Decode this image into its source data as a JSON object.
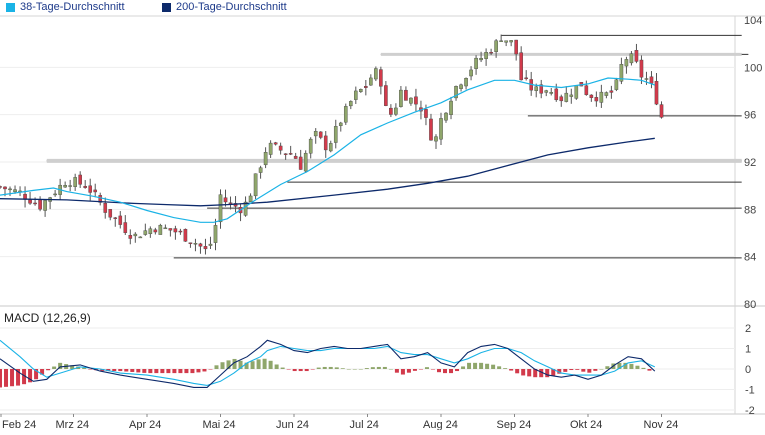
{
  "chart_data": [
    {
      "type": "candlestick",
      "series": [
        {
          "name": "38-Tage-Durchschnitt",
          "color": "#1ab3e6"
        },
        {
          "name": "200-Tage-Durchschnitt",
          "color": "#0d2a6b"
        }
      ],
      "ylim": [
        80,
        104
      ],
      "yticks": [
        "104",
        "100",
        "96",
        "92",
        "88",
        "84",
        "80"
      ],
      "xticks": [
        "Feb 24",
        "Mrz 24",
        "Apr 24",
        "Mai 24",
        "Jun 24",
        "Jul 24",
        "Aug 24",
        "Sep 24",
        "Okt 24",
        "Nov 24"
      ],
      "price_path": [
        [
          0,
          89.9
        ],
        [
          3,
          89.4
        ],
        [
          6,
          88.3
        ],
        [
          10,
          90.5
        ],
        [
          13,
          90.0
        ],
        [
          16,
          87.8
        ],
        [
          20,
          85.7
        ],
        [
          23,
          86.5
        ],
        [
          26,
          86.2
        ],
        [
          29,
          85.3
        ],
        [
          31,
          84.4
        ],
        [
          32,
          85.8
        ],
        [
          33,
          89.2
        ],
        [
          34,
          88.5
        ],
        [
          36,
          88.1
        ],
        [
          37,
          88.6
        ],
        [
          40,
          93.4
        ],
        [
          44,
          92.6
        ],
        [
          45,
          91.7
        ],
        [
          47,
          94.4
        ],
        [
          49,
          93.2
        ],
        [
          51,
          95.5
        ],
        [
          53,
          97.6
        ],
        [
          55,
          98.5
        ],
        [
          56,
          99.8
        ],
        [
          57,
          98.8
        ],
        [
          58,
          95.7
        ],
        [
          59,
          96.4
        ],
        [
          60,
          98.0
        ],
        [
          63,
          96.6
        ],
        [
          65,
          93.5
        ],
        [
          66,
          95.6
        ],
        [
          68,
          98.2
        ],
        [
          71,
          100.3
        ],
        [
          74,
          101.8
        ],
        [
          75,
          102.6
        ],
        [
          77,
          101.9
        ],
        [
          78,
          99.0
        ],
        [
          80,
          98.0
        ],
        [
          82,
          98.2
        ],
        [
          84,
          97.4
        ],
        [
          87,
          98.6
        ],
        [
          88,
          97.7
        ],
        [
          90,
          97.5
        ],
        [
          92,
          98.0
        ],
        [
          93,
          100.1
        ],
        [
          94,
          101.0
        ],
        [
          95,
          100.5
        ],
        [
          96,
          99.3
        ],
        [
          97,
          98.9
        ],
        [
          98,
          97.8
        ],
        [
          99,
          95.8
        ]
      ],
      "ma38_path": [
        [
          0,
          89.2
        ],
        [
          5,
          89.6
        ],
        [
          8,
          89.8
        ],
        [
          10,
          89.5
        ],
        [
          14,
          89.1
        ],
        [
          18,
          88.6
        ],
        [
          22,
          87.9
        ],
        [
          26,
          87.3
        ],
        [
          30,
          86.9
        ],
        [
          32,
          86.9
        ],
        [
          34,
          87.2
        ],
        [
          38,
          88.7
        ],
        [
          42,
          90.1
        ],
        [
          46,
          91.2
        ],
        [
          50,
          92.6
        ],
        [
          54,
          94.3
        ],
        [
          58,
          95.3
        ],
        [
          62,
          96.2
        ],
        [
          66,
          97.0
        ],
        [
          70,
          98.1
        ],
        [
          74,
          98.9
        ],
        [
          77,
          98.9
        ],
        [
          80,
          98.5
        ],
        [
          84,
          98.3
        ],
        [
          88,
          98.6
        ],
        [
          91,
          99.1
        ],
        [
          94,
          99.0
        ],
        [
          96,
          98.9
        ],
        [
          98,
          98.5
        ]
      ],
      "ma200_path": [
        [
          0,
          88.9
        ],
        [
          10,
          88.8
        ],
        [
          20,
          88.5
        ],
        [
          25,
          88.4
        ],
        [
          30,
          88.3
        ],
        [
          34,
          88.4
        ],
        [
          40,
          88.6
        ],
        [
          50,
          89.2
        ],
        [
          58,
          89.7
        ],
        [
          64,
          90.2
        ],
        [
          70,
          90.8
        ],
        [
          76,
          91.7
        ],
        [
          82,
          92.6
        ],
        [
          88,
          93.2
        ],
        [
          94,
          93.7
        ],
        [
          98,
          94.0
        ]
      ],
      "support_resistance": [
        {
          "level": 102.7,
          "from": 75,
          "to": 111
        },
        {
          "level": 101.1,
          "from": 57,
          "to": 111
        },
        {
          "level": 101.1,
          "from": 93,
          "to": 112
        },
        {
          "level": 95.9,
          "from": 79,
          "to": 111
        },
        {
          "level": 92.1,
          "from": 7,
          "to": 111
        },
        {
          "level": 90.3,
          "from": 43,
          "to": 111
        },
        {
          "level": 88.1,
          "from": 31,
          "to": 111
        },
        {
          "level": 83.9,
          "from": 26,
          "to": 111
        }
      ]
    },
    {
      "type": "bar",
      "title": "MACD (12,26,9)",
      "ylim": [
        -2,
        2
      ],
      "yticks": [
        "2",
        "1",
        "0",
        "-1",
        "-2"
      ],
      "histogram_color_positive": "#8fa66b",
      "histogram_color_negative": "#d23a4b",
      "macd_line_color": "#0d2a6b",
      "signal_line_color": "#1ab3e6",
      "macd_path": [
        [
          0,
          0.5
        ],
        [
          3,
          -0.2
        ],
        [
          5,
          -0.6
        ],
        [
          7,
          -0.5
        ],
        [
          9,
          0.1
        ],
        [
          12,
          0.2
        ],
        [
          15,
          -0.1
        ],
        [
          18,
          -0.3
        ],
        [
          22,
          -0.5
        ],
        [
          26,
          -0.7
        ],
        [
          29,
          -0.9
        ],
        [
          31,
          -0.9
        ],
        [
          33,
          -0.3
        ],
        [
          35,
          0.3
        ],
        [
          37,
          0.6
        ],
        [
          39,
          1.1
        ],
        [
          40,
          1.4
        ],
        [
          42,
          1.2
        ],
        [
          44,
          0.9
        ],
        [
          46,
          0.8
        ],
        [
          48,
          1.0
        ],
        [
          50,
          1.1
        ],
        [
          52,
          1.0
        ],
        [
          54,
          1.0
        ],
        [
          56,
          1.1
        ],
        [
          58,
          1.2
        ],
        [
          60,
          0.5
        ],
        [
          62,
          0.6
        ],
        [
          64,
          0.8
        ],
        [
          66,
          0.3
        ],
        [
          68,
          0.1
        ],
        [
          70,
          0.8
        ],
        [
          72,
          1.1
        ],
        [
          74,
          1.2
        ],
        [
          76,
          1.0
        ],
        [
          78,
          0.5
        ],
        [
          80,
          0.0
        ],
        [
          82,
          -0.3
        ],
        [
          84,
          -0.4
        ],
        [
          86,
          -0.3
        ],
        [
          88,
          -0.5
        ],
        [
          90,
          -0.3
        ],
        [
          92,
          0.2
        ],
        [
          94,
          0.6
        ],
        [
          96,
          0.5
        ],
        [
          98,
          -0.1
        ]
      ],
      "signal_path": [
        [
          0,
          1.4
        ],
        [
          3,
          0.6
        ],
        [
          5,
          0.0
        ],
        [
          7,
          -0.4
        ],
        [
          9,
          -0.2
        ],
        [
          12,
          0.1
        ],
        [
          15,
          0.0
        ],
        [
          18,
          -0.2
        ],
        [
          22,
          -0.3
        ],
        [
          26,
          -0.5
        ],
        [
          29,
          -0.7
        ],
        [
          31,
          -0.8
        ],
        [
          33,
          -0.6
        ],
        [
          35,
          -0.2
        ],
        [
          37,
          0.3
        ],
        [
          39,
          0.6
        ],
        [
          40,
          0.9
        ],
        [
          42,
          1.1
        ],
        [
          44,
          1.0
        ],
        [
          46,
          0.9
        ],
        [
          48,
          0.9
        ],
        [
          50,
          1.0
        ],
        [
          52,
          1.0
        ],
        [
          54,
          1.0
        ],
        [
          56,
          1.0
        ],
        [
          58,
          1.1
        ],
        [
          60,
          0.8
        ],
        [
          62,
          0.7
        ],
        [
          64,
          0.7
        ],
        [
          66,
          0.5
        ],
        [
          68,
          0.3
        ],
        [
          70,
          0.5
        ],
        [
          72,
          0.8
        ],
        [
          74,
          1.0
        ],
        [
          76,
          1.0
        ],
        [
          78,
          0.8
        ],
        [
          80,
          0.4
        ],
        [
          82,
          0.1
        ],
        [
          84,
          -0.2
        ],
        [
          86,
          -0.3
        ],
        [
          88,
          -0.3
        ],
        [
          90,
          -0.3
        ],
        [
          92,
          -0.1
        ],
        [
          94,
          0.3
        ],
        [
          96,
          0.4
        ],
        [
          98,
          0.1
        ]
      ]
    }
  ]
}
